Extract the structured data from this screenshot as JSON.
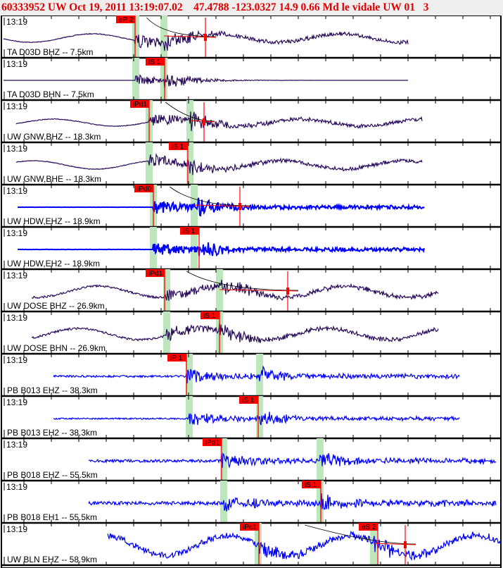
{
  "header": {
    "title": "60333952 UW Oct 19, 2011 13:19:07.02    47.4788 -123.0327 14.9 0.66 Md le vidale UW 01   3"
  },
  "colors": {
    "broadband": "#2a0c5c",
    "short_period": "#0000ff",
    "pick": "#ff0000",
    "window": "#bde6bd"
  },
  "traces": [
    {
      "time": "13:19",
      "label": "TA D03D BHZ -- 7.5km",
      "picks": [
        "eP 2"
      ]
    },
    {
      "time": "13:19",
      "label": "TA D03D BHN -- 7.5km",
      "picks": [
        "iS 1"
      ]
    },
    {
      "time": "13:19",
      "label": "UW GNW,BHZ -- 18.3km",
      "picks": [
        "iPd1"
      ]
    },
    {
      "time": "13:19",
      "label": "UW GNW,BHE -- 18.3km",
      "picks": [
        "iS 1"
      ]
    },
    {
      "time": "13:19",
      "label": "UW HDW,EHZ -- 18.9km",
      "picks": [
        "iPd0"
      ]
    },
    {
      "time": "13:19",
      "label": "UW HDW,EH2 -- 18.9km",
      "picks": [
        "iS 1"
      ]
    },
    {
      "time": "13:19",
      "label": "UW DOSE BHZ -- 26.9km",
      "picks": [
        "iPd1"
      ]
    },
    {
      "time": "13:19",
      "label": "UW DOSE BHN -- 26.9km",
      "picks": [
        "iS 1"
      ]
    },
    {
      "time": "13:19",
      "label": "PB B013 EHZ -- 38.3km",
      "picks": [
        "iP 1"
      ]
    },
    {
      "time": "13:19",
      "label": "PB B013 EH2 -- 38.3km",
      "picks": [
        "iS 1"
      ]
    },
    {
      "time": "13:19",
      "label": "PB B018 EHZ -- 55.5km",
      "picks": [
        "iPd1"
      ]
    },
    {
      "time": "13:19",
      "label": "PB B018 EH1 -- 55.5km",
      "picks": [
        "iS 1"
      ]
    },
    {
      "time": "13:19",
      "label": "UW BLN EHZ -- 58.9km",
      "picks": [
        "iPc1",
        "eS 2"
      ]
    }
  ]
}
